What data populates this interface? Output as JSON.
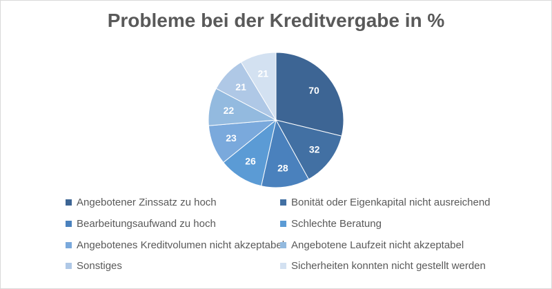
{
  "chart_data": {
    "type": "pie",
    "title": "Probleme bei der Kreditvergabe in %",
    "legend_position": "bottom",
    "slices": [
      {
        "label": "Angebotener Zinssatz zu hoch",
        "value": 70,
        "color": "#3d6594"
      },
      {
        "label": "Bonität oder Eigenkapital nicht ausreichend",
        "value": 32,
        "color": "#4270a3"
      },
      {
        "label": "Bearbeitungsaufwand zu hoch",
        "value": 28,
        "color": "#4a81bd"
      },
      {
        "label": "Schlechte Beratung",
        "value": 26,
        "color": "#5b9bd5"
      },
      {
        "label": "Angebotenes Kreditvolumen nicht akzeptabel",
        "value": 23,
        "color": "#7aa9dc"
      },
      {
        "label": "Angebotene Laufzeit nicht akzeptabel",
        "value": 22,
        "color": "#93badf"
      },
      {
        "label": "Sonstiges",
        "value": 21,
        "color": "#afc8e6"
      },
      {
        "label": "Sicherheiten konnten nicht gestellt werden",
        "value": 21,
        "color": "#d3e1f1"
      }
    ]
  }
}
